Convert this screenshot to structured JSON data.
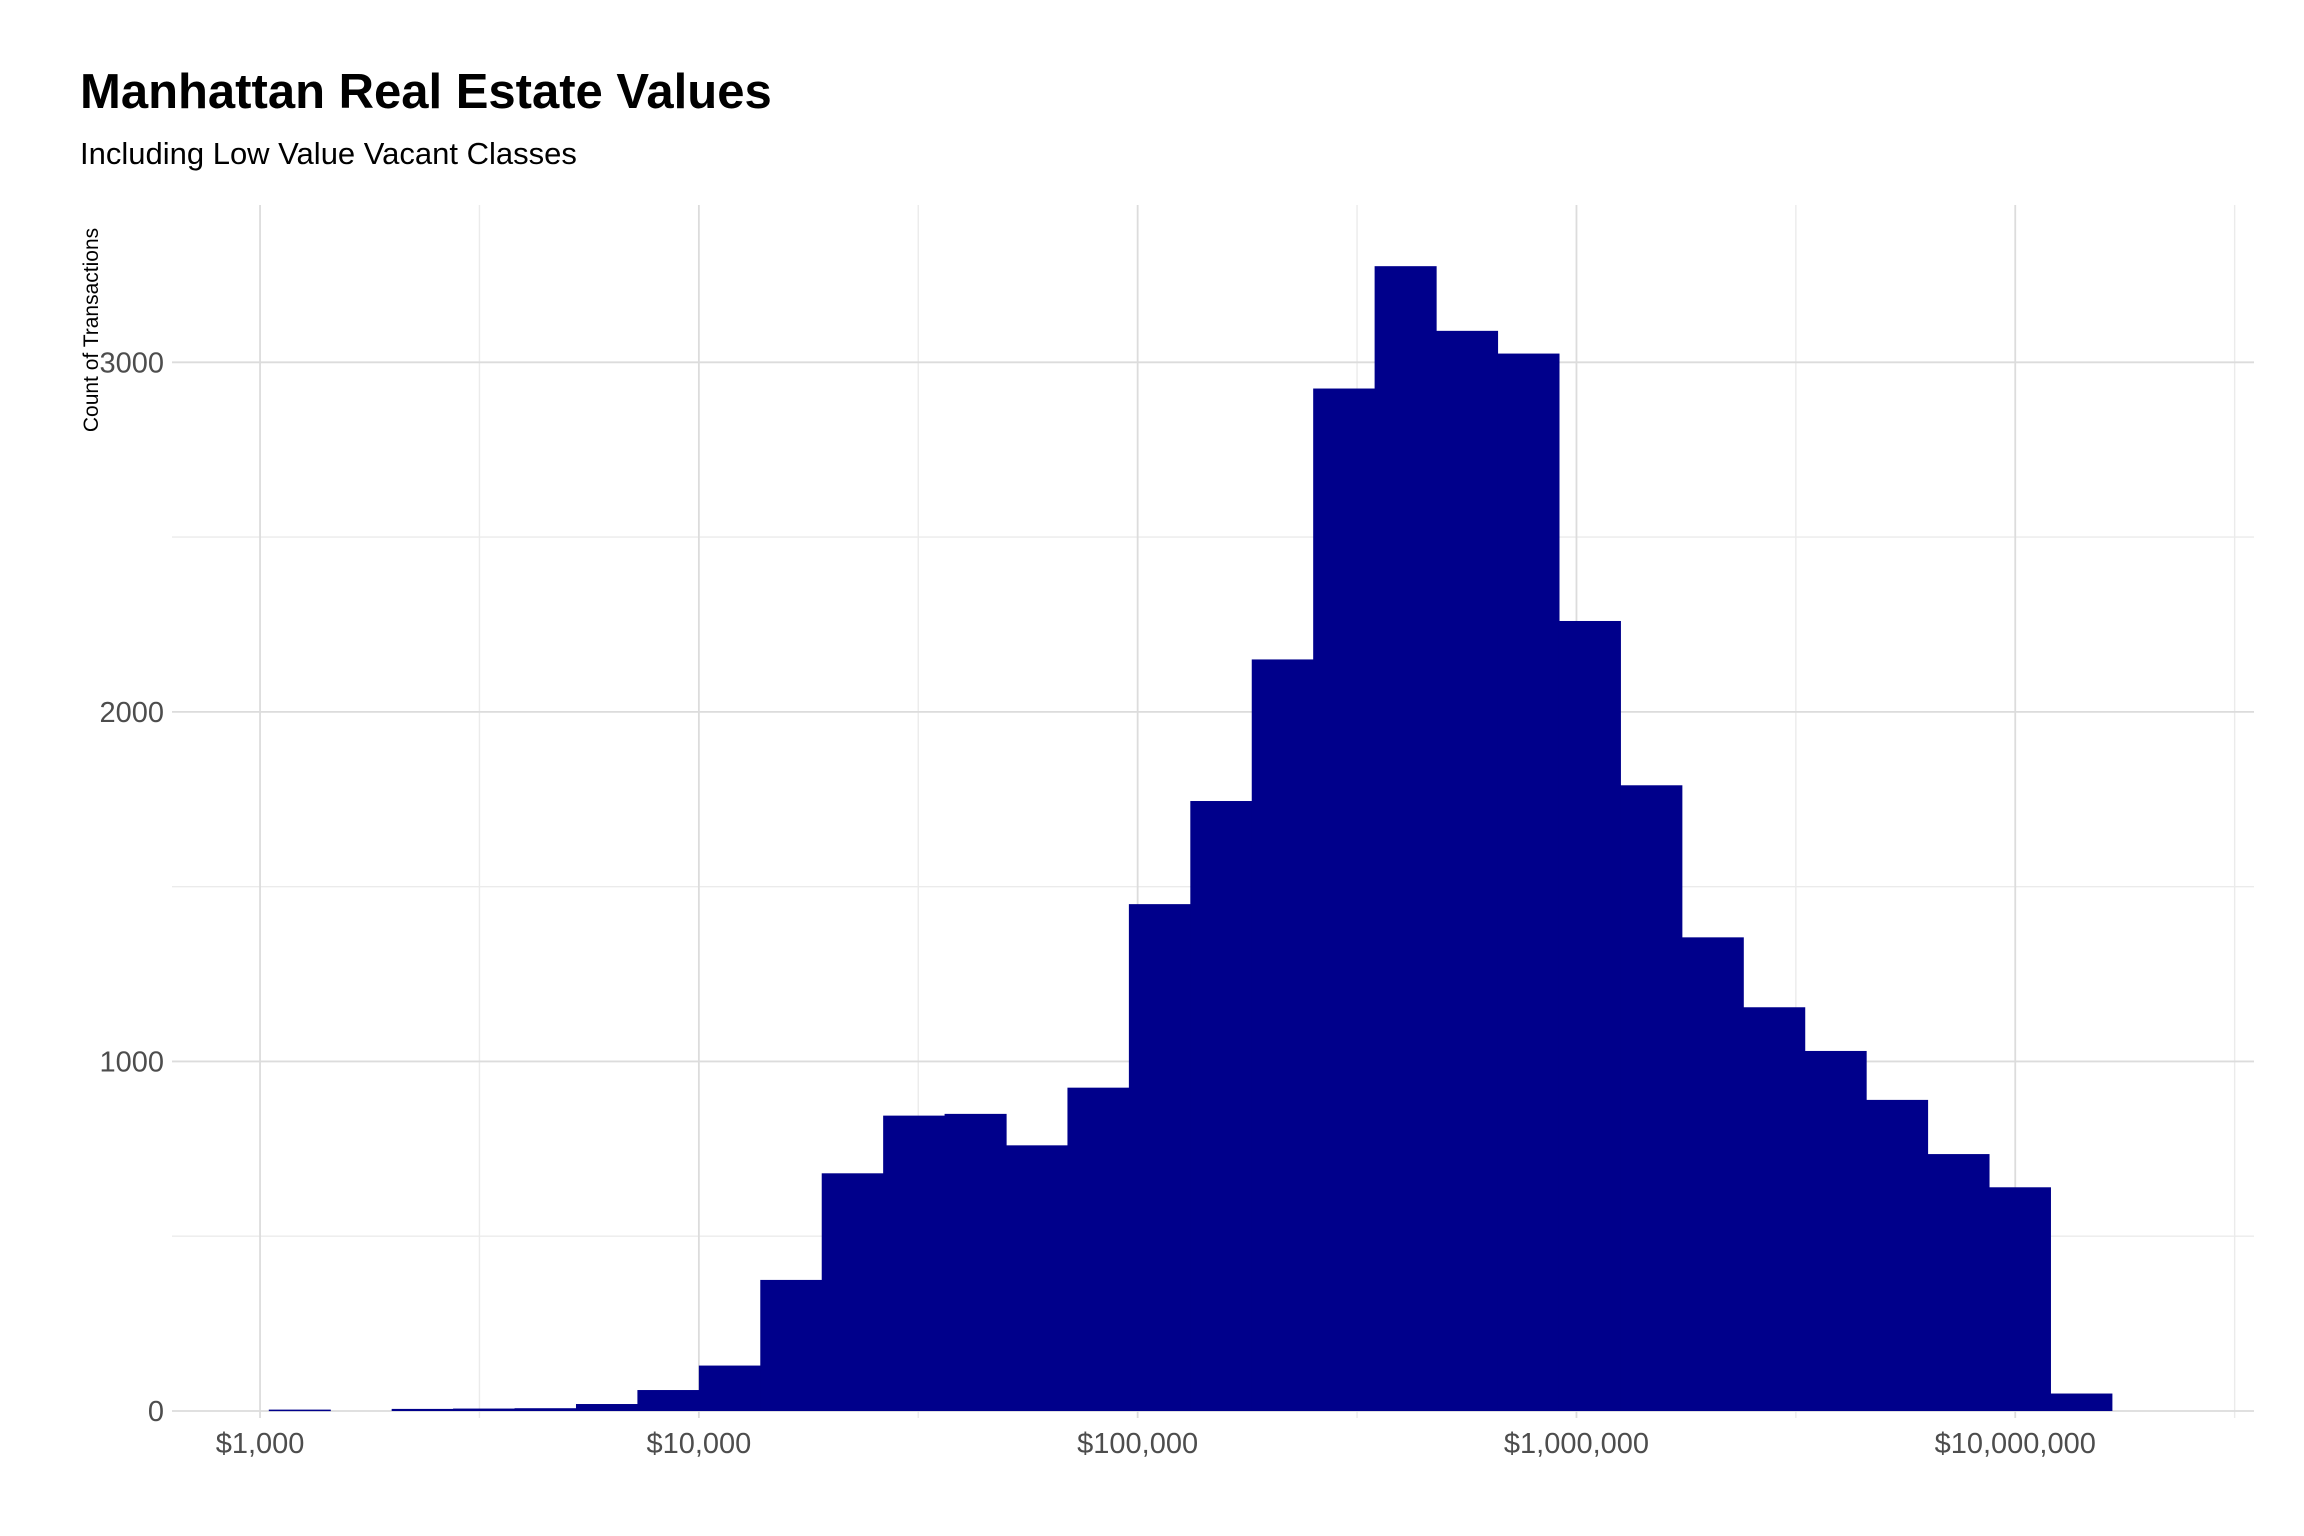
{
  "chart_data": {
    "type": "bar",
    "title": "Manhattan Real Estate Values",
    "subtitle": "Including Low Value Vacant Classes",
    "xlabel": "",
    "ylabel": "Count of Transactions",
    "x_scale": "log10",
    "xlim": [
      630,
      35000000
    ],
    "ylim": [
      -20,
      3450
    ],
    "x_ticks": [
      {
        "value": 1000,
        "label": "$1,000"
      },
      {
        "value": 10000,
        "label": "$10,000"
      },
      {
        "value": 100000,
        "label": "$100,000"
      },
      {
        "value": 1000000,
        "label": "$1,000,000"
      },
      {
        "value": 10000000,
        "label": "$10,000,000"
      }
    ],
    "y_ticks": [
      {
        "value": 0,
        "label": "0"
      },
      {
        "value": 1000,
        "label": "1000"
      },
      {
        "value": 2000,
        "label": "2000"
      },
      {
        "value": 3000,
        "label": "3000"
      }
    ],
    "bins": [
      {
        "x0": 1047,
        "x1": 1445,
        "count": 4
      },
      {
        "x0": 1445,
        "x1": 1995,
        "count": 0
      },
      {
        "x0": 1995,
        "x1": 2754,
        "count": 6
      },
      {
        "x0": 2754,
        "x1": 3802,
        "count": 7
      },
      {
        "x0": 3802,
        "x1": 5248,
        "count": 8
      },
      {
        "x0": 5248,
        "x1": 7244,
        "count": 20
      },
      {
        "x0": 7244,
        "x1": 10000,
        "count": 60
      },
      {
        "x0": 10000,
        "x1": 13804,
        "count": 130
      },
      {
        "x0": 13804,
        "x1": 19055,
        "count": 375
      },
      {
        "x0": 19055,
        "x1": 26303,
        "count": 680
      },
      {
        "x0": 26303,
        "x1": 36308,
        "count": 845
      },
      {
        "x0": 36308,
        "x1": 50119,
        "count": 850
      },
      {
        "x0": 50119,
        "x1": 69183,
        "count": 760
      },
      {
        "x0": 69183,
        "x1": 95499,
        "count": 925
      },
      {
        "x0": 95499,
        "x1": 131826,
        "count": 1450
      },
      {
        "x0": 131826,
        "x1": 181970,
        "count": 1745
      },
      {
        "x0": 181970,
        "x1": 251189,
        "count": 2150
      },
      {
        "x0": 251189,
        "x1": 346737,
        "count": 2925
      },
      {
        "x0": 346737,
        "x1": 478630,
        "count": 3275
      },
      {
        "x0": 478630,
        "x1": 660693,
        "count": 3090
      },
      {
        "x0": 660693,
        "x1": 912011,
        "count": 3025
      },
      {
        "x0": 912011,
        "x1": 1258925,
        "count": 2260
      },
      {
        "x0": 1258925,
        "x1": 1737801,
        "count": 1790
      },
      {
        "x0": 1737801,
        "x1": 2398833,
        "count": 1355
      },
      {
        "x0": 2398833,
        "x1": 3311311,
        "count": 1155
      },
      {
        "x0": 3311311,
        "x1": 4570882,
        "count": 1030
      },
      {
        "x0": 4570882,
        "x1": 6309573,
        "count": 890
      },
      {
        "x0": 6309573,
        "x1": 8709636,
        "count": 735
      },
      {
        "x0": 8709636,
        "x1": 12022644,
        "count": 640
      },
      {
        "x0": 12022644,
        "x1": 16595869,
        "count": 50
      }
    ],
    "bar_color": "#00008B",
    "grid": true,
    "legend": "none"
  }
}
